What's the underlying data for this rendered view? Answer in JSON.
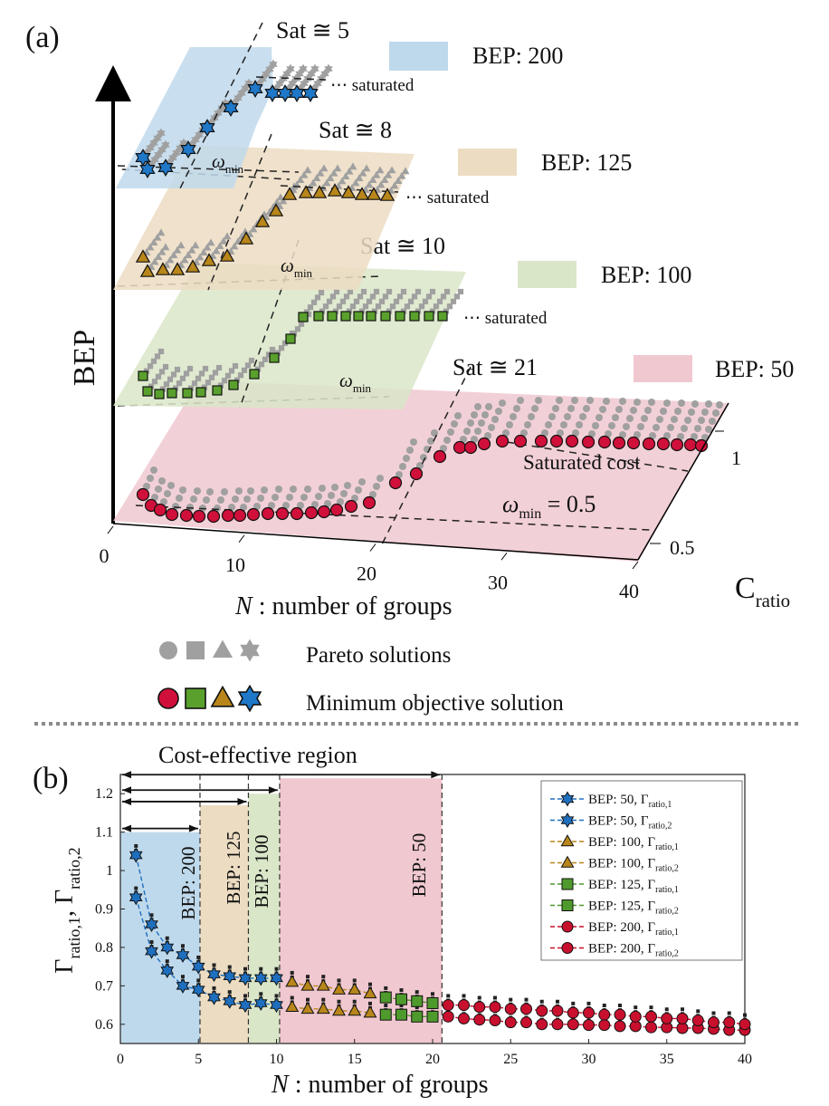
{
  "panel_a": {
    "label": "(a)",
    "y_axis_label": "BEP",
    "x_axis": {
      "label_italic": "N",
      "label_rest": " : number of groups",
      "ticks": [
        "0",
        "10",
        "20",
        "30",
        "40"
      ]
    },
    "c_axis": {
      "label_main": "C",
      "label_sub": "ratio",
      "ticks": [
        "0.5",
        "1"
      ]
    },
    "saturated_text": "⋯ saturated",
    "saturated_cost": "Saturated cost",
    "omega": "ω",
    "omega_sub": "min",
    "omega_eq": "= 0.5",
    "layers": [
      {
        "bep": 200,
        "legend": "BEP: 200",
        "sat": "Sat ≅ 5",
        "color": "#bfd9ec",
        "marker": "star"
      },
      {
        "bep": 125,
        "legend": "BEP: 125",
        "sat": "Sat ≅ 8",
        "color": "#ecdcc2",
        "marker": "triangle"
      },
      {
        "bep": 100,
        "legend": "BEP: 100",
        "sat": "Sat ≅ 10",
        "color": "#d9e6c8",
        "marker": "square"
      },
      {
        "bep": 50,
        "legend": "BEP: 50",
        "sat": "Sat ≅ 21",
        "color": "#f0c8d0",
        "marker": "circle"
      }
    ],
    "marker_legend": {
      "pareto": "Pareto solutions",
      "minimum": "Minimum objective solution"
    }
  },
  "panel_b": {
    "label": "(b)",
    "region_title": "Cost-effective region",
    "y_label_main": "Γ",
    "y_label_sub1": "ratio,1",
    "y_label_sep": ", Γ",
    "y_label_sub2": "ratio,2",
    "x_label_italic": "N",
    "x_label_rest": " : number of groups",
    "legend": [
      {
        "text": "BEP: 50, Γ",
        "sub": "ratio,1"
      },
      {
        "text": "BEP: 50, Γ",
        "sub": "ratio,2"
      },
      {
        "text": "BEP: 100, Γ",
        "sub": "ratio,1"
      },
      {
        "text": "BEP: 100, Γ",
        "sub": "ratio,2"
      },
      {
        "text": "BEP: 125, Γ",
        "sub": "ratio,1"
      },
      {
        "text": "BEP: 125, Γ",
        "sub": "ratio,2"
      },
      {
        "text": "BEP: 200, Γ",
        "sub": "ratio,1"
      },
      {
        "text": "BEP: 200, Γ",
        "sub": "ratio,2"
      }
    ],
    "region_labels": [
      "BEP: 200",
      "BEP: 125",
      "BEP: 100",
      "BEP: 50"
    ]
  },
  "chart_data": [
    {
      "type": "scatter",
      "title": "",
      "xlabel": "N : number of groups",
      "ylabel": "BEP",
      "zlabel": "C_ratio",
      "xlim": [
        0,
        40
      ],
      "zlim": [
        0.5,
        1
      ],
      "series": [
        {
          "name": "BEP: 200",
          "saturation_N": 5,
          "omega_min": 0.5,
          "min_objective_N": [
            1,
            2,
            3,
            4,
            5,
            6,
            7,
            8,
            9
          ],
          "min_objective_C": [
            0.52,
            0.56,
            0.54,
            0.66,
            0.82,
            0.94,
            0.94,
            0.94,
            0.94
          ]
        },
        {
          "name": "BEP: 125",
          "saturation_N": 8,
          "omega_min": 0.5,
          "min_objective_N": [
            1,
            2,
            3,
            4,
            5,
            6,
            7,
            8,
            9,
            10,
            11,
            12,
            13,
            14,
            15
          ],
          "min_objective_C": [
            0.58,
            0.54,
            0.55,
            0.54,
            0.56,
            0.57,
            0.59,
            0.7,
            0.83,
            0.94,
            0.94,
            0.95,
            0.94,
            0.95,
            0.94
          ]
        },
        {
          "name": "BEP: 100",
          "saturation_N": 10,
          "omega_min": 0.5,
          "min_objective_N": [
            1,
            2,
            3,
            4,
            5,
            6,
            7,
            8,
            9,
            10,
            11,
            12,
            13,
            14,
            15,
            16,
            17,
            18,
            19
          ],
          "min_objective_C": [
            0.56,
            0.53,
            0.53,
            0.53,
            0.53,
            0.53,
            0.54,
            0.55,
            0.58,
            0.68,
            0.78,
            0.87,
            0.94,
            0.94,
            0.94,
            0.94,
            0.94,
            0.94,
            0.94
          ]
        },
        {
          "name": "BEP: 50",
          "saturation_N": 21,
          "omega_min": 0.5,
          "min_objective_N": [
            1,
            2,
            3,
            4,
            5,
            6,
            7,
            8,
            9,
            10,
            11,
            12,
            13,
            14,
            15,
            16,
            17,
            18,
            19,
            20,
            21,
            22,
            23,
            24,
            25,
            26,
            27,
            28,
            29,
            30,
            31,
            32,
            33,
            34,
            35,
            36,
            37,
            38,
            39,
            40
          ],
          "min_objective_C": [
            0.57,
            0.54,
            0.53,
            0.53,
            0.53,
            0.53,
            0.53,
            0.53,
            0.53,
            0.53,
            0.53,
            0.53,
            0.53,
            0.53,
            0.53,
            0.54,
            0.54,
            0.55,
            0.56,
            0.58,
            0.63,
            0.7,
            0.78,
            0.86,
            0.93,
            0.95,
            0.95,
            0.95,
            0.95,
            0.95,
            0.95,
            0.95,
            0.95,
            0.95,
            0.95,
            0.95,
            0.95,
            0.95,
            0.95,
            0.95
          ]
        }
      ]
    },
    {
      "type": "line",
      "title": "Cost-effective region",
      "xlabel": "N : number of groups",
      "ylabel": "Γratio,1, Γratio,2",
      "xlim": [
        0,
        40
      ],
      "ylim": [
        0.55,
        1.25
      ],
      "xticks": [
        0,
        5,
        10,
        15,
        20,
        25,
        30,
        35,
        40
      ],
      "yticks": [
        0.6,
        0.7,
        0.8,
        0.9,
        1,
        1.1,
        1.2
      ],
      "regions": [
        {
          "name": "BEP: 200",
          "x_end": 5.1,
          "y_top": 1.1,
          "color": "#bfd9ec"
        },
        {
          "name": "BEP: 125",
          "x_end": 8.2,
          "y_top": 1.17,
          "color": "#ecdcc2"
        },
        {
          "name": "BEP: 100",
          "x_end": 10.2,
          "y_top": 1.2,
          "color": "#d9e6c8"
        },
        {
          "name": "BEP: 50",
          "x_end": 20.6,
          "y_top": 1.24,
          "color": "#f0c8d0"
        }
      ],
      "series": [
        {
          "name": "BEP: 200, Γratio,1",
          "color": "#1f6fbf",
          "marker": "star",
          "x": [
            1,
            2,
            3,
            4,
            5,
            6,
            7,
            8,
            9,
            10
          ],
          "values": [
            0.93,
            0.79,
            0.74,
            0.7,
            0.69,
            0.67,
            0.66,
            0.65,
            0.655,
            0.65
          ]
        },
        {
          "name": "BEP: 200, Γratio,2",
          "color": "#1f6fbf",
          "marker": "star",
          "x": [
            1,
            2,
            3,
            4,
            5,
            6,
            7,
            8,
            9,
            10
          ],
          "values": [
            1.04,
            0.86,
            0.8,
            0.78,
            0.75,
            0.73,
            0.725,
            0.72,
            0.72,
            0.72
          ]
        },
        {
          "name": "BEP: 125, Γratio,1",
          "color": "#b8861a",
          "marker": "triangle",
          "x": [
            11,
            12,
            13,
            14,
            15,
            16
          ],
          "values": [
            0.645,
            0.64,
            0.64,
            0.635,
            0.635,
            0.63
          ]
        },
        {
          "name": "BEP: 125, Γratio,2",
          "color": "#b8861a",
          "marker": "triangle",
          "x": [
            11,
            12,
            13,
            14,
            15,
            16
          ],
          "values": [
            0.71,
            0.7,
            0.7,
            0.69,
            0.69,
            0.68
          ]
        },
        {
          "name": "BEP: 100, Γratio,1",
          "color": "#4f9a2c",
          "marker": "square",
          "x": [
            17,
            18,
            19,
            20
          ],
          "values": [
            0.625,
            0.625,
            0.62,
            0.62
          ]
        },
        {
          "name": "BEP: 100, Γratio,2",
          "color": "#4f9a2c",
          "marker": "square",
          "x": [
            17,
            18,
            19,
            20
          ],
          "values": [
            0.67,
            0.665,
            0.66,
            0.655
          ]
        },
        {
          "name": "BEP: 50, Γratio,1",
          "color": "#c8102e",
          "marker": "circle",
          "x": [
            21,
            22,
            23,
            24,
            25,
            26,
            27,
            28,
            29,
            30,
            31,
            32,
            33,
            34,
            35,
            36,
            37,
            38,
            39,
            40
          ],
          "values": [
            0.62,
            0.615,
            0.612,
            0.61,
            0.605,
            0.605,
            0.6,
            0.6,
            0.6,
            0.598,
            0.598,
            0.595,
            0.595,
            0.592,
            0.592,
            0.59,
            0.59,
            0.588,
            0.585,
            0.585
          ]
        },
        {
          "name": "BEP: 50, Γratio,2",
          "color": "#c8102e",
          "marker": "circle",
          "x": [
            21,
            22,
            23,
            24,
            25,
            26,
            27,
            28,
            29,
            30,
            31,
            32,
            33,
            34,
            35,
            36,
            37,
            38,
            39,
            40
          ],
          "values": [
            0.65,
            0.65,
            0.645,
            0.645,
            0.64,
            0.64,
            0.635,
            0.635,
            0.63,
            0.63,
            0.625,
            0.625,
            0.62,
            0.62,
            0.615,
            0.615,
            0.61,
            0.605,
            0.605,
            0.6
          ]
        }
      ]
    }
  ]
}
